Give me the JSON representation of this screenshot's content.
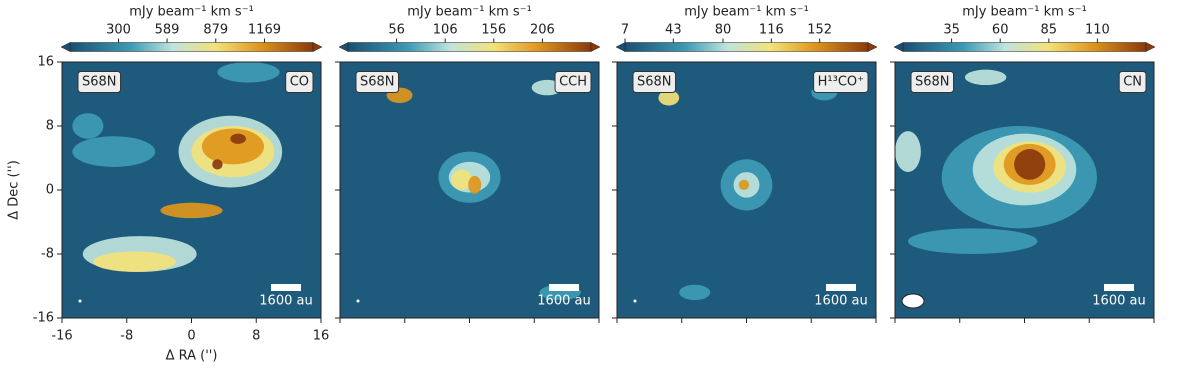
{
  "chart_data": [
    {
      "type": "image",
      "colorbar_label": "mJy beam⁻¹ km s⁻¹",
      "clim": [
        11,
        1458
      ],
      "cticks": [
        300,
        589,
        879,
        1169
      ],
      "source": "S68N",
      "line": "CO",
      "scale_label": "1600 au",
      "xlabel": "Δ RA ('')",
      "ylabel": "Δ Dec ('')",
      "xlim": [
        -16,
        16
      ],
      "ylim": [
        -16,
        16
      ],
      "xticks": [
        -16,
        -8,
        0,
        8,
        16
      ],
      "yticks": [
        -16,
        -8,
        0,
        8,
        16
      ]
    },
    {
      "type": "image",
      "colorbar_label": "mJy beam⁻¹ km s⁻¹",
      "clim": [
        6,
        256
      ],
      "cticks": [
        56,
        106,
        156,
        206
      ],
      "source": "S68N",
      "line": "CCH",
      "scale_label": "1600 au",
      "xlim": [
        -16,
        16
      ],
      "ylim": [
        -16,
        16
      ]
    },
    {
      "type": "image",
      "colorbar_label": "mJy beam⁻¹ km s⁻¹",
      "clim": [
        7,
        188
      ],
      "cticks": [
        7,
        43,
        80,
        116,
        152
      ],
      "source": "S68N",
      "line": "H¹³CO⁺",
      "scale_label": "1600 au",
      "xlim": [
        -16,
        16
      ],
      "ylim": [
        -16,
        16
      ]
    },
    {
      "type": "image",
      "colorbar_label": "mJy beam⁻¹ km s⁻¹",
      "clim": [
        10,
        135
      ],
      "cticks": [
        35,
        60,
        85,
        110
      ],
      "source": "S68N",
      "line": "CN",
      "scale_label": "1600 au",
      "xlim": [
        -16,
        16
      ],
      "ylim": [
        -16,
        16
      ]
    }
  ]
}
